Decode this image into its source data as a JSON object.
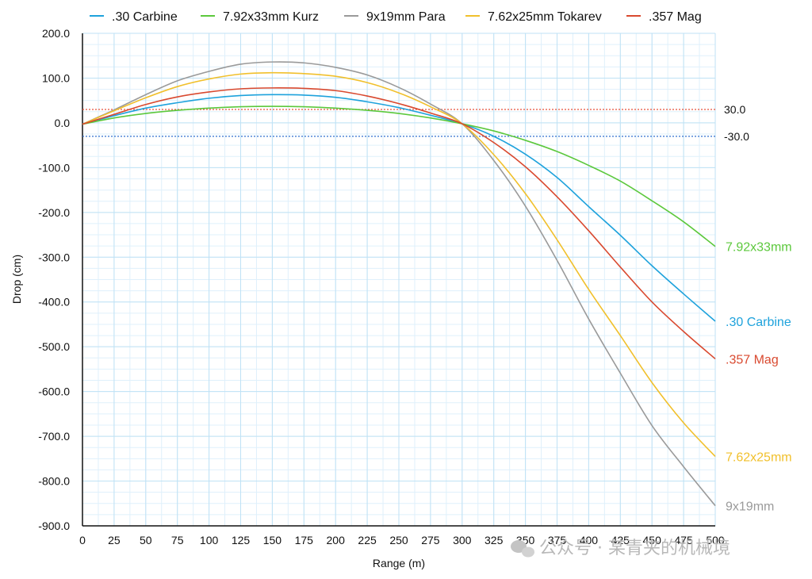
{
  "chart_data": {
    "type": "line",
    "title": "",
    "xlabel": "Range (m)",
    "ylabel": "Drop (cm)",
    "xlim": [
      0,
      500
    ],
    "ylim": [
      -900,
      200
    ],
    "x_ticks": [
      "0",
      "25",
      "50",
      "75",
      "100",
      "125",
      "150",
      "175",
      "200",
      "225",
      "250",
      "275",
      "300",
      "325",
      "350",
      "375",
      "400",
      "425",
      "450",
      "475",
      "500"
    ],
    "y_ticks": [
      "200.0",
      "100.0",
      "0.0",
      "-100.0",
      "-200.0",
      "-300.0",
      "-400.0",
      "-500.0",
      "-600.0",
      "-700.0",
      "-800.0",
      "-900.0"
    ],
    "grid": true,
    "legend_position": "top",
    "reference_lines": [
      {
        "value": 30,
        "label": "30.0",
        "color": "#e8513a",
        "style": "dotted"
      },
      {
        "value": -30,
        "label": "-30.0",
        "color": "#2e6fcf",
        "style": "dotted"
      }
    ],
    "x": [
      0,
      25,
      50,
      75,
      100,
      125,
      150,
      175,
      200,
      225,
      250,
      275,
      300,
      325,
      350,
      375,
      400,
      425,
      450,
      475,
      500
    ],
    "series": [
      {
        "name": ".30 Carbine",
        "end_label": ".30 Carbine",
        "color": "#1ea2dc",
        "values": [
          -3,
          16,
          33,
          45,
          55,
          61,
          63,
          62,
          57,
          47,
          34,
          17,
          -2,
          -30,
          -70,
          -122,
          -187,
          -251,
          -319,
          -382,
          -443
        ]
      },
      {
        "name": "7.92x33mm Kurz",
        "end_label": "7.92x33mm",
        "color": "#5cc83c",
        "values": [
          -3,
          11,
          21,
          28,
          33,
          36,
          37,
          36,
          33,
          28,
          21,
          11,
          -2,
          -18,
          -39,
          -64,
          -95,
          -130,
          -174,
          -221,
          -276
        ]
      },
      {
        "name": "9x19mm Para",
        "end_label": "9x19mm",
        "color": "#9a9a9a",
        "values": [
          -3,
          29,
          63,
          94,
          115,
          131,
          136,
          134,
          124,
          107,
          79,
          42,
          -2,
          -84,
          -186,
          -307,
          -438,
          -559,
          -676,
          -768,
          -855
        ]
      },
      {
        "name": "7.62x25mm Tokarev",
        "end_label": "7.62x25mm",
        "color": "#f1c02c",
        "values": [
          -3,
          27,
          56,
          81,
          98,
          109,
          112,
          110,
          104,
          90,
          67,
          36,
          -2,
          -71,
          -158,
          -261,
          -372,
          -475,
          -580,
          -670,
          -745
        ]
      },
      {
        "name": ".357 Mag",
        "end_label": ".357 Mag",
        "color": "#d9492f",
        "values": [
          -3,
          19,
          41,
          58,
          69,
          76,
          78,
          77,
          72,
          60,
          43,
          22,
          -2,
          -44,
          -98,
          -165,
          -241,
          -322,
          -400,
          -466,
          -527
        ]
      }
    ]
  },
  "watermark": {
    "text": "公众号 · 某青夹的机械境",
    "icon": "wechat-icon"
  }
}
